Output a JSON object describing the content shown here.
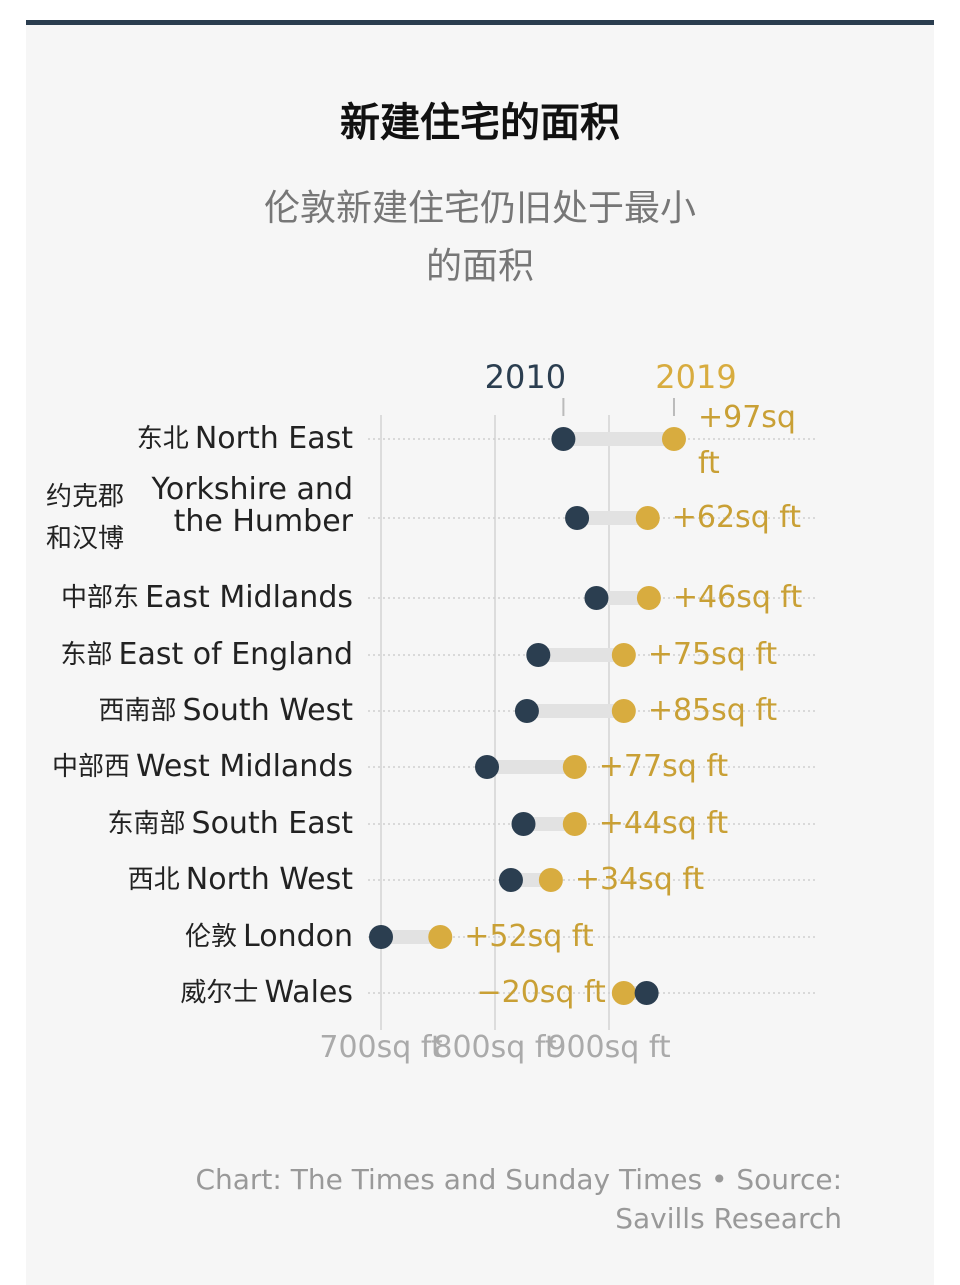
{
  "title": "新建住宅的面积",
  "subtitle": "伦敦新建住宅仍旧处于最小的面积",
  "footer": "Chart: The Times and Sunday Times • Source: Savills Research",
  "colors": {
    "y2010": "#2b3e50",
    "y2019": "#d8ac3f",
    "bar": "#e2e2e2"
  },
  "chart_data": {
    "type": "dumbbell",
    "legend": [
      "2010",
      "2019"
    ],
    "legend_placement": "top",
    "xlim": [
      700,
      960
    ],
    "xticks": [
      "700sq ft",
      "800sq ft",
      "900sq ft"
    ],
    "xtick_values": [
      700,
      800,
      900
    ],
    "grid": true,
    "rows": [
      {
        "zh": "东北",
        "en": "North East",
        "v2010": 860,
        "v2019": 957,
        "delta": "+97sq ft"
      },
      {
        "zh": "约克郡和汉博",
        "en": "Yorkshire and the Humber",
        "v2010": 872,
        "v2019": 934,
        "delta": "+62sq ft"
      },
      {
        "zh": "中部东",
        "en": "East Midlands",
        "v2010": 889,
        "v2019": 935,
        "delta": "+46sq ft"
      },
      {
        "zh": "东部",
        "en": "East of England",
        "v2010": 838,
        "v2019": 913,
        "delta": "+75sq ft"
      },
      {
        "zh": "西南部",
        "en": "South West",
        "v2010": 828,
        "v2019": 913,
        "delta": "+85sq ft"
      },
      {
        "zh": "中部西",
        "en": "West Midlands",
        "v2010": 793,
        "v2019": 870,
        "delta": "+77sq ft"
      },
      {
        "zh": "东南部",
        "en": "South East",
        "v2010": 825,
        "v2019": 870,
        "delta": "+44sq ft"
      },
      {
        "zh": "西北",
        "en": "North West",
        "v2010": 814,
        "v2019": 849,
        "delta": "+34sq ft"
      },
      {
        "zh": "伦敦",
        "en": "London",
        "v2010": 700,
        "v2019": 752,
        "delta": "+52sq ft"
      },
      {
        "zh": "威尔士",
        "en": "Wales",
        "v2010": 933,
        "v2019": 913,
        "delta": "−20sq ft"
      }
    ]
  }
}
